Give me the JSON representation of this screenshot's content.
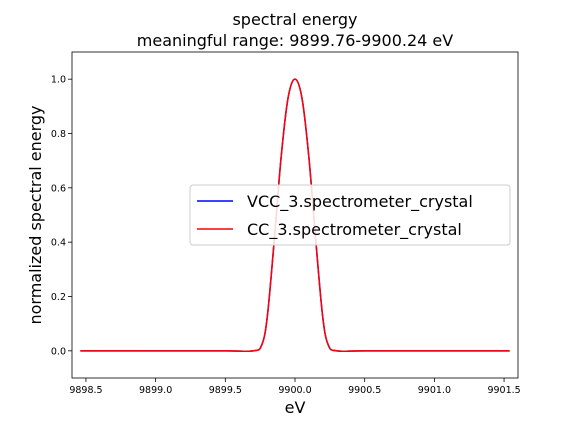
{
  "chart_data": {
    "type": "line",
    "title": "spectral energy",
    "subtitle": "meaningful range: 9899.76-9900.24 eV",
    "xlabel": "eV",
    "ylabel": "normalized spectral energy",
    "xlim": [
      9898.4,
      9901.6
    ],
    "ylim": [
      -0.1,
      1.1
    ],
    "x_ticks": [
      9898.5,
      9899.0,
      9899.5,
      9900.0,
      9900.5,
      9901.0,
      9901.5
    ],
    "x_tick_labels": [
      "9898.5",
      "9899.0",
      "9899.5",
      "9900.0",
      "9900.5",
      "9901.0",
      "9901.5"
    ],
    "y_ticks": [
      0.0,
      0.2,
      0.4,
      0.6,
      0.8,
      1.0
    ],
    "y_tick_labels": [
      "0.0",
      "0.2",
      "0.4",
      "0.6",
      "0.8",
      "1.0"
    ],
    "grid": false,
    "legend_position": "center-right",
    "x": [
      9898.46,
      9899.0,
      9899.5,
      9899.7,
      9899.76,
      9899.8,
      9899.85,
      9899.9,
      9899.95,
      9900.0,
      9900.05,
      9900.1,
      9900.15,
      9900.2,
      9900.24,
      9900.3,
      9900.5,
      9901.0,
      9901.54
    ],
    "series": [
      {
        "name": "VCC_3.spectrometer_crystal",
        "color": "#0000ff",
        "values": [
          0.0,
          0.0,
          0.0,
          0.0,
          0.02,
          0.12,
          0.4,
          0.71,
          0.93,
          1.0,
          0.93,
          0.71,
          0.4,
          0.12,
          0.02,
          0.0,
          0.0,
          0.0,
          0.0
        ]
      },
      {
        "name": "CC_3.spectrometer_crystal",
        "color": "#ff0000",
        "values": [
          0.0,
          0.0,
          0.0,
          0.0,
          0.02,
          0.12,
          0.4,
          0.71,
          0.93,
          1.0,
          0.93,
          0.71,
          0.4,
          0.12,
          0.02,
          0.0,
          0.0,
          0.0,
          0.0
        ]
      }
    ]
  }
}
